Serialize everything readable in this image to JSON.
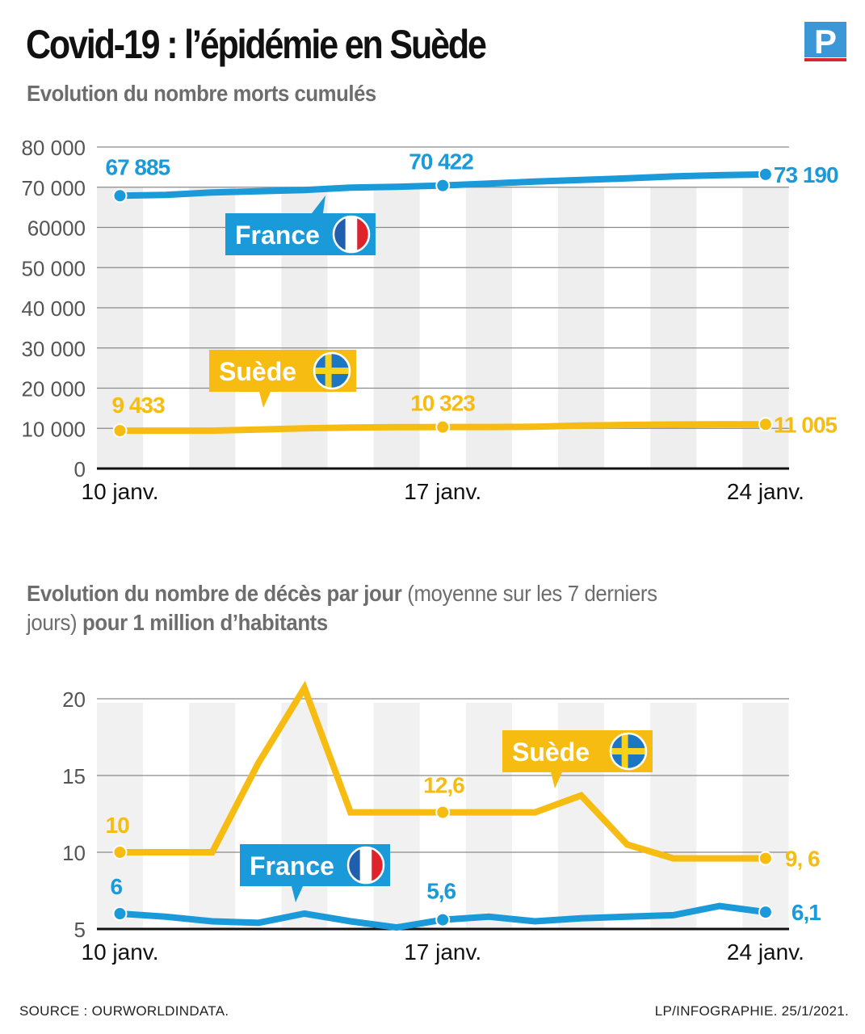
{
  "header": {
    "title": "Covid-19 : l’épidémie en Suède",
    "logo_letter": "P"
  },
  "colors": {
    "france": "#1a9ad9",
    "sweden": "#f6bc12",
    "stripe": "#ededed",
    "grid": "#8a8a8a",
    "axis": "#111111"
  },
  "chart1_subtitle": "Evolution du nombre morts cumulés",
  "chart2_subtitle": {
    "bold1": "Evolution du nombre de décès par jour",
    "light1": " (moyenne sur les 7 derniers jours) ",
    "bold2": "pour 1 million d’habitants"
  },
  "footer": {
    "source": "SOURCE : OURWORLDINDATA.",
    "credit": "LP/INFOGRAPHIE.  25/1/2021."
  },
  "chart_data": [
    {
      "type": "line",
      "title": "Evolution du nombre morts cumulés",
      "xlabel": "",
      "ylabel": "",
      "ylim": [
        0,
        80000
      ],
      "yticks": [
        0,
        10000,
        20000,
        30000,
        40000,
        50000,
        60000,
        70000,
        80000
      ],
      "ytick_labels": [
        "0",
        "10 000",
        "20 000",
        "30 000",
        "40 000",
        "50 000",
        "60000",
        "70 000",
        "80 000"
      ],
      "x": [
        10,
        11,
        12,
        13,
        14,
        15,
        16,
        17,
        18,
        19,
        20,
        21,
        22,
        23,
        24
      ],
      "xticks": [
        10,
        17,
        24
      ],
      "xtick_labels": [
        "10 janv.",
        "17 janv.",
        "24 janv."
      ],
      "grid": true,
      "series": [
        {
          "name": "France",
          "color": "#1a9ad9",
          "values": [
            67885,
            68100,
            68700,
            69000,
            69300,
            69900,
            70100,
            70422,
            70900,
            71400,
            71800,
            72200,
            72700,
            73000,
            73190
          ],
          "labeled_points": [
            {
              "x": 10,
              "label": "67 885"
            },
            {
              "x": 17,
              "label": "70 422"
            },
            {
              "x": 24,
              "label": "73 190"
            }
          ]
        },
        {
          "name": "Suède",
          "color": "#f6bc12",
          "values": [
            9433,
            9433,
            9433,
            9700,
            10000,
            10200,
            10300,
            10323,
            10323,
            10400,
            10700,
            10850,
            10950,
            11000,
            11005
          ],
          "labeled_points": [
            {
              "x": 10,
              "label": "9 433"
            },
            {
              "x": 17,
              "label": "10 323"
            },
            {
              "x": 24,
              "label": "11 005"
            }
          ]
        }
      ],
      "legend": [
        {
          "name": "France",
          "placement": "upper-middle-left"
        },
        {
          "name": "Suède",
          "placement": "middle-left"
        }
      ]
    },
    {
      "type": "line",
      "title": "Evolution du nombre de décès par jour (moyenne sur les 7 derniers jours) pour 1 million d’habitants",
      "xlabel": "",
      "ylabel": "",
      "ylim": [
        5,
        21
      ],
      "yticks": [
        5,
        10,
        15,
        20
      ],
      "ytick_labels": [
        "5",
        "10",
        "15",
        "20"
      ],
      "x": [
        10,
        11,
        12,
        13,
        14,
        15,
        16,
        17,
        18,
        19,
        20,
        21,
        22,
        23,
        24
      ],
      "xticks": [
        10,
        17,
        24
      ],
      "xtick_labels": [
        "10 janv.",
        "17 janv.",
        "24 janv."
      ],
      "grid": true,
      "series": [
        {
          "name": "Suède",
          "color": "#f6bc12",
          "values": [
            10,
            10,
            10,
            15.8,
            20.7,
            12.6,
            12.6,
            12.6,
            12.6,
            12.6,
            13.7,
            10.5,
            9.6,
            9.6,
            9.6
          ],
          "labeled_points": [
            {
              "x": 10,
              "label": "10"
            },
            {
              "x": 17,
              "label": "12,6"
            },
            {
              "x": 24,
              "label": "9, 6"
            }
          ]
        },
        {
          "name": "France",
          "color": "#1a9ad9",
          "values": [
            6.0,
            5.8,
            5.5,
            5.4,
            6.0,
            5.5,
            5.1,
            5.6,
            5.8,
            5.5,
            5.7,
            5.8,
            5.9,
            6.5,
            6.1
          ],
          "labeled_points": [
            {
              "x": 10,
              "label": "6"
            },
            {
              "x": 17,
              "label": "5,6"
            },
            {
              "x": 24,
              "label": "6,1"
            }
          ]
        }
      ],
      "legend": [
        {
          "name": "Suède",
          "placement": "upper-right"
        },
        {
          "name": "France",
          "placement": "lower-left"
        }
      ]
    }
  ]
}
